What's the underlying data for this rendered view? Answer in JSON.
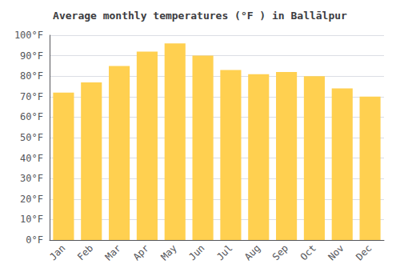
{
  "chart_data": {
    "type": "bar",
    "title": "Average monthly temperatures (°F ) in Ballālpur",
    "categories": [
      "Jan",
      "Feb",
      "Mar",
      "Apr",
      "May",
      "Jun",
      "Jul",
      "Aug",
      "Sep",
      "Oct",
      "Nov",
      "Dec"
    ],
    "values": [
      72,
      77,
      85,
      92,
      96,
      90,
      83,
      81,
      82,
      80,
      74,
      70
    ],
    "color": "#FFD050",
    "ylim": [
      0,
      100
    ],
    "yticks": [
      {
        "value": 0,
        "label": "0°F"
      },
      {
        "value": 10,
        "label": "10°F"
      },
      {
        "value": 20,
        "label": "20°F"
      },
      {
        "value": 30,
        "label": "30°F"
      },
      {
        "value": 40,
        "label": "40°F"
      },
      {
        "value": 50,
        "label": "50°F"
      },
      {
        "value": 60,
        "label": "60°F"
      },
      {
        "value": 70,
        "label": "70°F"
      },
      {
        "value": 80,
        "label": "80°F"
      },
      {
        "value": 90,
        "label": "90°F"
      },
      {
        "value": 100,
        "label": "100°F"
      }
    ],
    "grid": true
  }
}
